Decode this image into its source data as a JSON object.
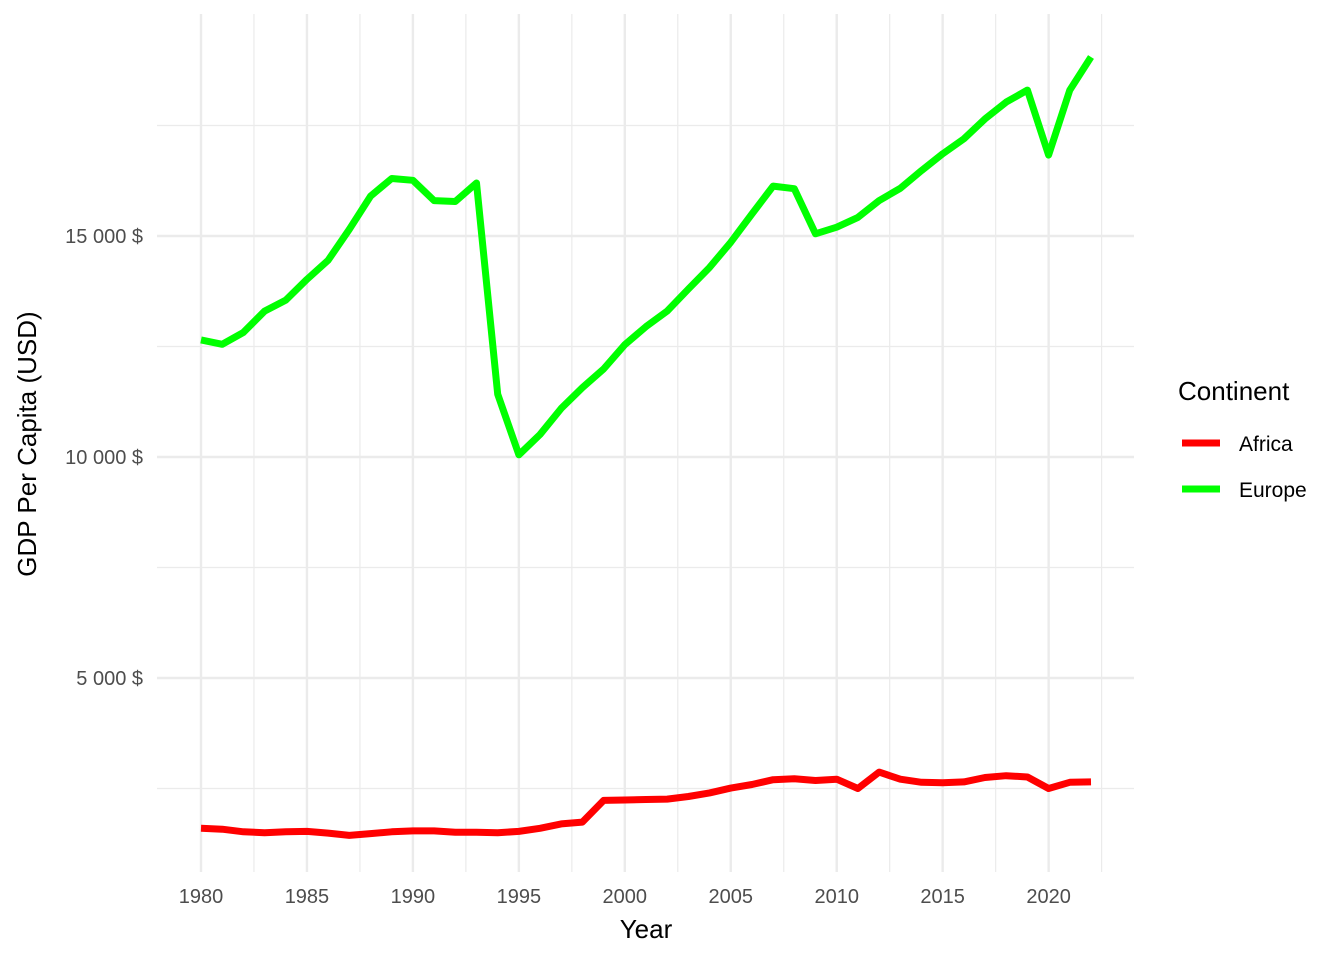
{
  "chart_data": {
    "type": "line",
    "title": "",
    "xlabel": "Year",
    "ylabel": "GDP Per Capita (USD)",
    "xlim": [
      1980,
      2022
    ],
    "ylim": [
      1300,
      19300
    ],
    "x_ticks": [
      1980,
      1985,
      1990,
      1995,
      2000,
      2005,
      2010,
      2015,
      2020
    ],
    "y_ticks": [
      5000,
      10000,
      15000
    ],
    "y_tick_labels": [
      "5 000 $",
      "10 000 $",
      "15 000 $"
    ],
    "grid": true,
    "legend": {
      "title": "Continent",
      "position": "right"
    },
    "x": [
      1980,
      1981,
      1982,
      1983,
      1984,
      1985,
      1986,
      1987,
      1988,
      1989,
      1990,
      1991,
      1992,
      1993,
      1994,
      1995,
      1996,
      1997,
      1998,
      1999,
      2000,
      2001,
      2002,
      2003,
      2004,
      2005,
      2006,
      2007,
      2008,
      2009,
      2010,
      2011,
      2012,
      2013,
      2014,
      2015,
      2016,
      2017,
      2018,
      2019,
      2020,
      2021,
      2022
    ],
    "series": [
      {
        "name": "Africa",
        "color": "#ff0000",
        "values": [
          1600,
          1580,
          1520,
          1500,
          1520,
          1530,
          1490,
          1440,
          1480,
          1520,
          1540,
          1540,
          1510,
          1510,
          1500,
          1530,
          1600,
          1700,
          1740,
          2230,
          2240,
          2250,
          2260,
          2320,
          2400,
          2510,
          2590,
          2700,
          2720,
          2680,
          2710,
          2500,
          2870,
          2710,
          2640,
          2630,
          2650,
          2750,
          2790,
          2760,
          2500,
          2640,
          2650
        ]
      },
      {
        "name": "Europe",
        "color": "#00ff00",
        "values": [
          12650,
          12550,
          12820,
          13300,
          13550,
          14020,
          14450,
          15150,
          15900,
          16300,
          16260,
          15800,
          15780,
          16200,
          11420,
          10050,
          10510,
          11100,
          11570,
          11990,
          12540,
          12950,
          13300,
          13800,
          14290,
          14860,
          15500,
          16130,
          16070,
          15050,
          15200,
          15420,
          15800,
          16080,
          16480,
          16860,
          17200,
          17650,
          18030,
          18300,
          16830,
          18300,
          19050
        ]
      }
    ]
  }
}
